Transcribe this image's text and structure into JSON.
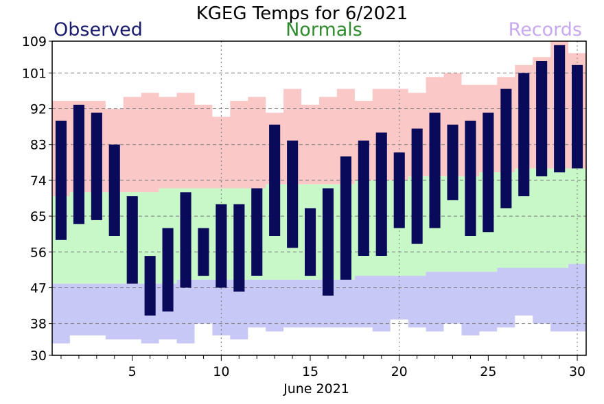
{
  "chart_data": {
    "type": "bar",
    "title": "KGEG Temps for 6/2021",
    "xlabel": "June 2021",
    "ylabel": "",
    "x": [
      1,
      2,
      3,
      4,
      5,
      6,
      7,
      8,
      9,
      10,
      11,
      12,
      13,
      14,
      15,
      16,
      17,
      18,
      19,
      20,
      21,
      22,
      23,
      24,
      25,
      26,
      27,
      28,
      29,
      30
    ],
    "xlim": [
      0.5,
      30.5
    ],
    "ylim": [
      30,
      109
    ],
    "yticks": [
      30,
      38,
      47,
      56,
      65,
      74,
      83,
      92,
      101,
      109
    ],
    "xticks": [
      5,
      10,
      15,
      20,
      25,
      30
    ],
    "dashed_grid_y": [
      38,
      47,
      56,
      65,
      74,
      83,
      92,
      101
    ],
    "dotted_grid_x": [
      10,
      20,
      30
    ],
    "legend": [
      "Observed",
      "Normals",
      "Records"
    ],
    "legend_placement": "top",
    "colors": {
      "observed": "#0a0a5a",
      "normals": "#c8f7c8",
      "records_high": "#fbc8c8",
      "records_low": "#c8c8f7",
      "legend_observed": "#1a1a6e",
      "legend_normals": "#2e8b2e",
      "legend_records": "#c8a8f0"
    },
    "series": [
      {
        "name": "Observed",
        "high": [
          89,
          93,
          91,
          83,
          70,
          55,
          62,
          71,
          62,
          68,
          68,
          72,
          88,
          84,
          67,
          72,
          80,
          84,
          86,
          81,
          87,
          91,
          88,
          89,
          91,
          97,
          101,
          104,
          108,
          103
        ],
        "low": [
          59,
          63,
          64,
          60,
          48,
          40,
          41,
          47,
          50,
          47,
          46,
          50,
          60,
          57,
          50,
          45,
          49,
          55,
          55,
          62,
          58,
          62,
          69,
          60,
          61,
          67,
          70,
          75,
          76,
          77
        ]
      },
      {
        "name": "Normals",
        "high": [
          70,
          71,
          71,
          71,
          71,
          71,
          72,
          72,
          72,
          72,
          72,
          72,
          73,
          73,
          73,
          73,
          73,
          74,
          74,
          74,
          75,
          75,
          75,
          75,
          76,
          76,
          77,
          77,
          77,
          77
        ],
        "low": [
          48,
          48,
          48,
          48,
          48,
          48,
          48,
          49,
          49,
          49,
          49,
          49,
          49,
          49,
          49,
          49,
          49,
          50,
          50,
          50,
          50,
          51,
          51,
          51,
          51,
          52,
          52,
          52,
          52,
          53
        ]
      },
      {
        "name": "Records",
        "high": [
          94,
          94,
          94,
          92,
          95,
          96,
          95,
          96,
          93,
          90,
          94,
          95,
          91,
          97,
          93,
          95,
          97,
          94,
          97,
          97,
          96,
          100,
          101,
          98,
          98,
          100,
          103,
          105,
          109,
          106
        ],
        "low": [
          33,
          35,
          35,
          34,
          34,
          33,
          34,
          33,
          38,
          35,
          34,
          37,
          36,
          37,
          37,
          37,
          37,
          37,
          36,
          39,
          37,
          36,
          38,
          35,
          36,
          37,
          40,
          38,
          36,
          36
        ]
      }
    ]
  }
}
